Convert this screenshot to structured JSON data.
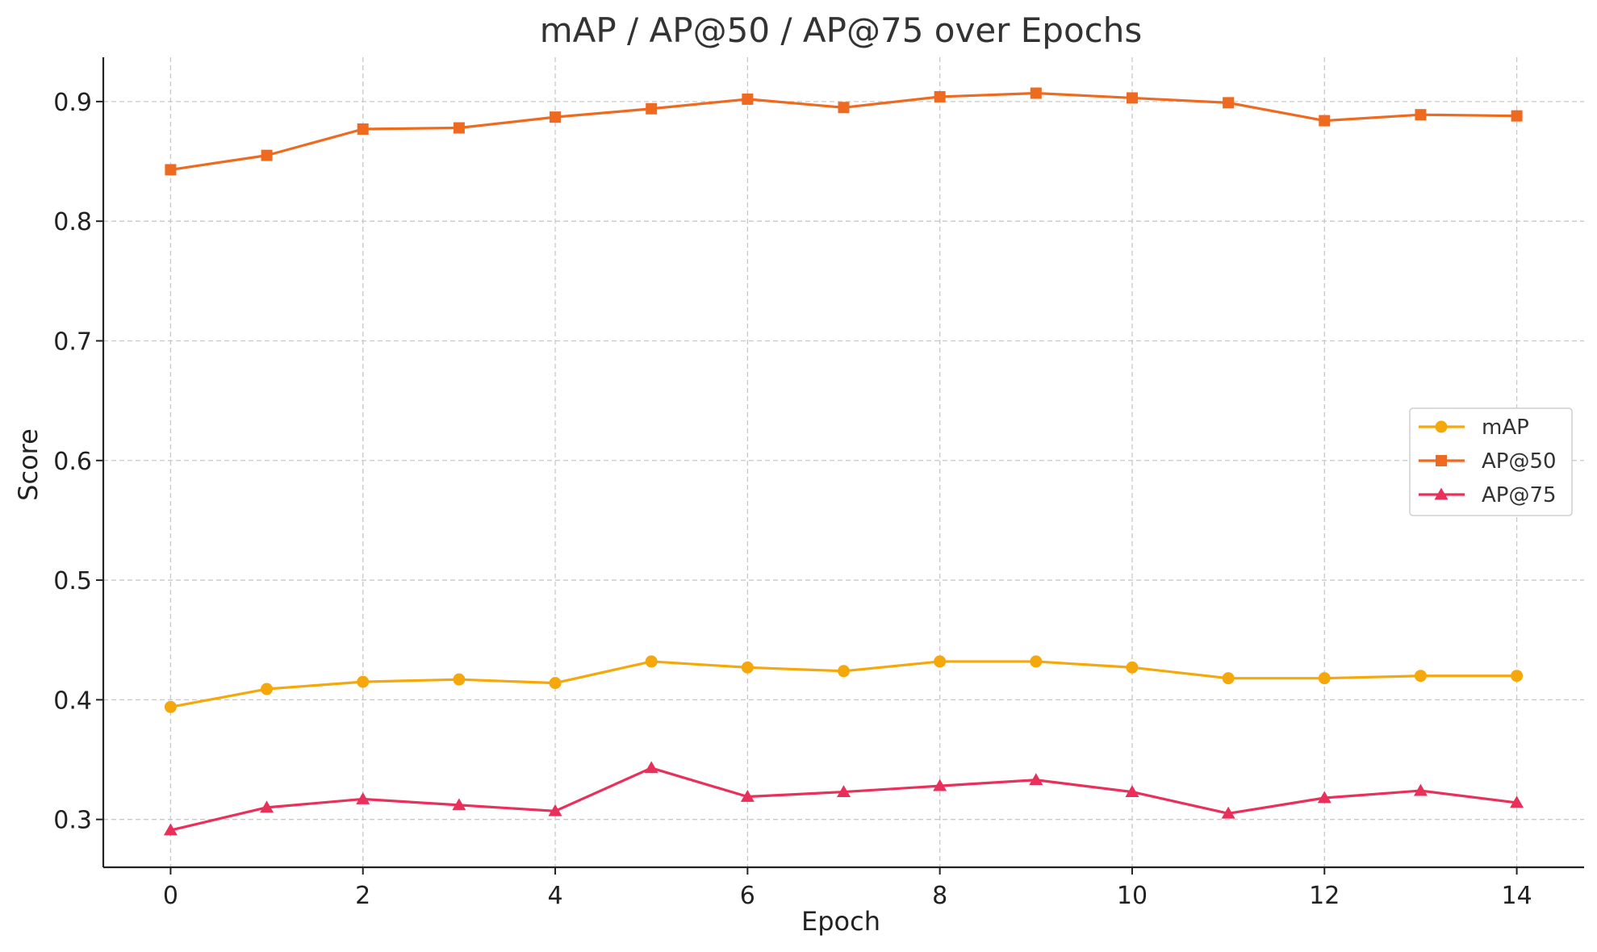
{
  "chart_data": {
    "type": "line",
    "title": "mAP / AP@50 / AP@75 over Epochs",
    "xlabel": "Epoch",
    "ylabel": "Score",
    "xlim": [
      -0.7,
      14.7
    ],
    "ylim": [
      0.26,
      0.937
    ],
    "xticks": [
      0,
      2,
      4,
      6,
      8,
      10,
      12,
      14
    ],
    "yticks": [
      0.3,
      0.4,
      0.5,
      0.6,
      0.7,
      0.8,
      0.9
    ],
    "grid": true,
    "legend_position": "center-right",
    "x": [
      0,
      1,
      2,
      3,
      4,
      5,
      6,
      7,
      8,
      9,
      10,
      11,
      12,
      13,
      14
    ],
    "series": [
      {
        "name": "mAP",
        "color": "#F5A80C",
        "marker": "circle",
        "values": [
          0.394,
          0.409,
          0.415,
          0.417,
          0.414,
          0.432,
          0.427,
          0.424,
          0.432,
          0.432,
          0.427,
          0.418,
          0.418,
          0.42,
          0.42
        ]
      },
      {
        "name": "AP@50",
        "color": "#EE6A21",
        "marker": "square",
        "values": [
          0.843,
          0.855,
          0.877,
          0.878,
          0.887,
          0.894,
          0.902,
          0.895,
          0.904,
          0.907,
          0.903,
          0.899,
          0.884,
          0.889,
          0.888
        ]
      },
      {
        "name": "AP@75",
        "color": "#E8305A",
        "marker": "triangle",
        "values": [
          0.291,
          0.31,
          0.317,
          0.312,
          0.307,
          0.343,
          0.319,
          0.323,
          0.328,
          0.333,
          0.323,
          0.305,
          0.318,
          0.324,
          0.314
        ]
      }
    ]
  }
}
